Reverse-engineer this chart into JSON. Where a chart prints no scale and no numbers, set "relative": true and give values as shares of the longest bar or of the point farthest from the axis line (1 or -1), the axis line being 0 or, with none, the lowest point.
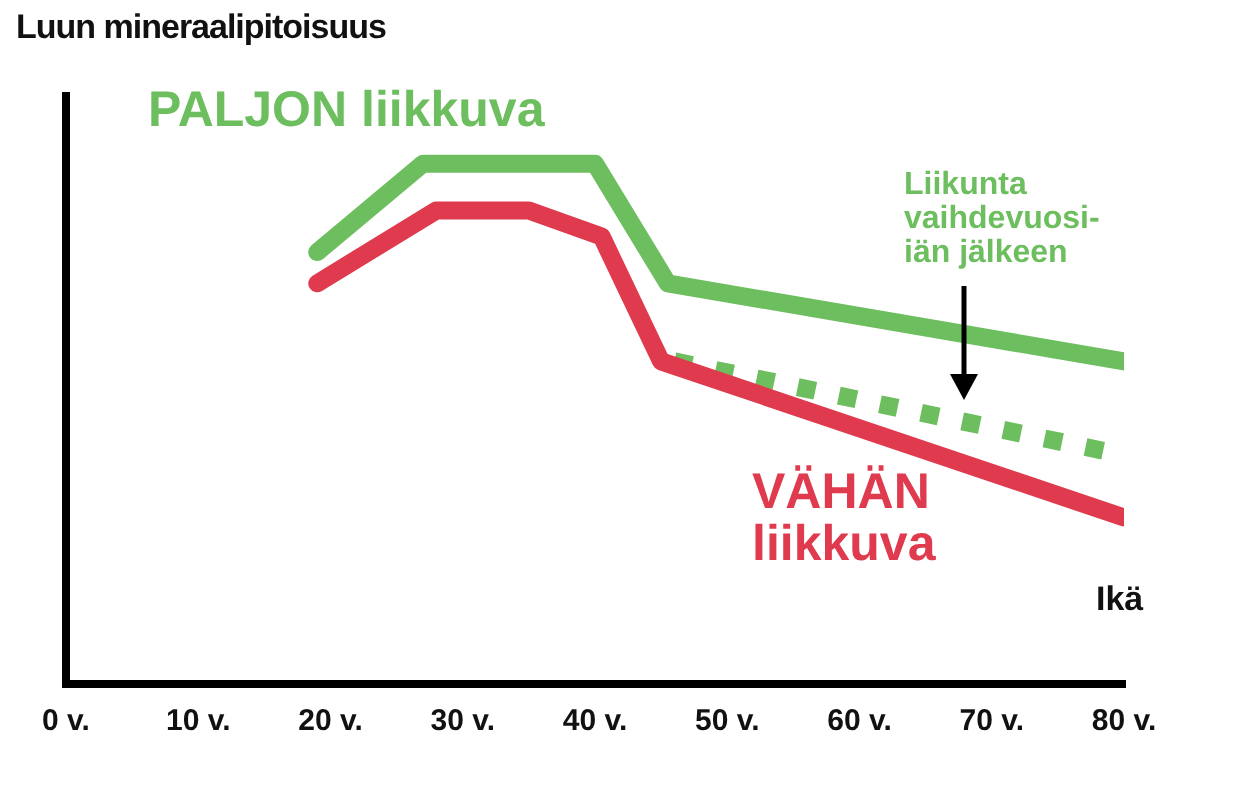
{
  "chart_data": {
    "type": "line",
    "relative": true,
    "ylabel": "Luun mineraalipitoisuus",
    "xlabel": "Ikä",
    "xlim": [
      0,
      80
    ],
    "xticks": [
      {
        "value": 0,
        "label": "0 v."
      },
      {
        "value": 10,
        "label": "10 v."
      },
      {
        "value": 20,
        "label": "20 v."
      },
      {
        "value": 30,
        "label": "30 v."
      },
      {
        "value": 40,
        "label": "40 v."
      },
      {
        "value": 50,
        "label": "50 v."
      },
      {
        "value": 60,
        "label": "60 v."
      },
      {
        "value": 70,
        "label": "70 v."
      },
      {
        "value": 80,
        "label": "80 v."
      }
    ],
    "grid": false,
    "legend": false,
    "marker": "none",
    "tick_labels": "x",
    "series": [
      {
        "name": "PALJON liikkuva",
        "color": "#6dbe5e",
        "line_style": "solid",
        "x": [
          19,
          27,
          40,
          45.5,
          80
        ],
        "values": [
          0.83,
          1,
          1,
          0.77,
          0.62
        ]
      },
      {
        "name": "VÄHÄN liikkuva",
        "color": "#e03a4e",
        "line_style": "solid",
        "x": [
          19,
          28,
          35,
          40.5,
          45,
          80
        ],
        "values": [
          0.77,
          0.91,
          0.91,
          0.86,
          0.62,
          0.32
        ]
      },
      {
        "name": "Liikunta vaihdevuosi-iän jälkeen",
        "color": "#6dbe5e",
        "line_style": "dotted",
        "x": [
          46,
          80
        ],
        "values": [
          0.62,
          0.44
        ]
      }
    ]
  }
}
